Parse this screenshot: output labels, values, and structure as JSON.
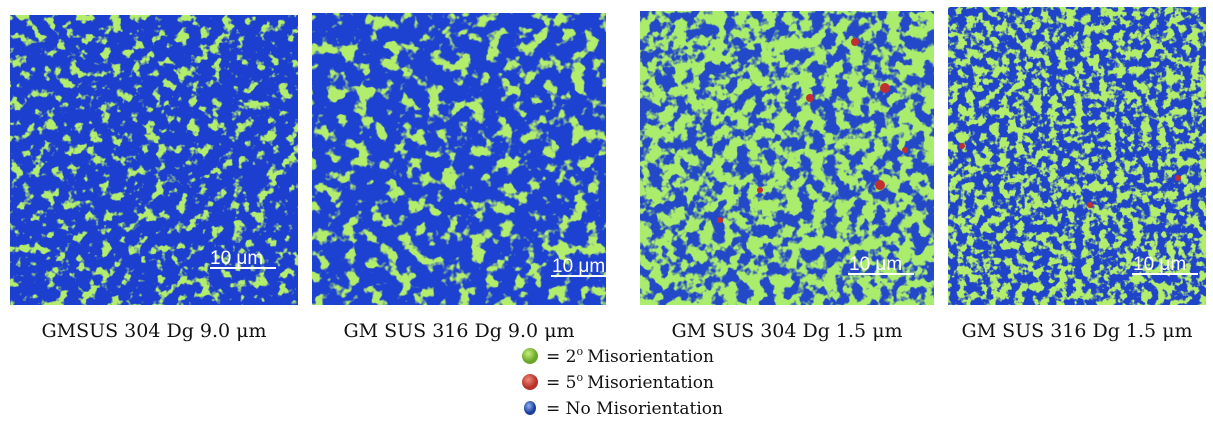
{
  "panels": [
    {
      "caption": "GMSUS 304 Dg 9.0 μm",
      "scale_label": "10 μm"
    },
    {
      "caption": "GM SUS 316 Dg 9.0 μm",
      "scale_label": "10 μm"
    },
    {
      "caption": "GM SUS 304 Dg 1.5 μm",
      "scale_label": "10 μm"
    },
    {
      "caption": "GM SUS 316 Dg 1.5 μm",
      "scale_label": "10 μm"
    }
  ],
  "legend": [
    {
      "prefix": "= 2",
      "degree": "o",
      "label": "Misorientation"
    },
    {
      "prefix": "= 5",
      "degree": "o",
      "label": "Misorientation"
    },
    {
      "label": "= No Misorientation"
    }
  ]
}
